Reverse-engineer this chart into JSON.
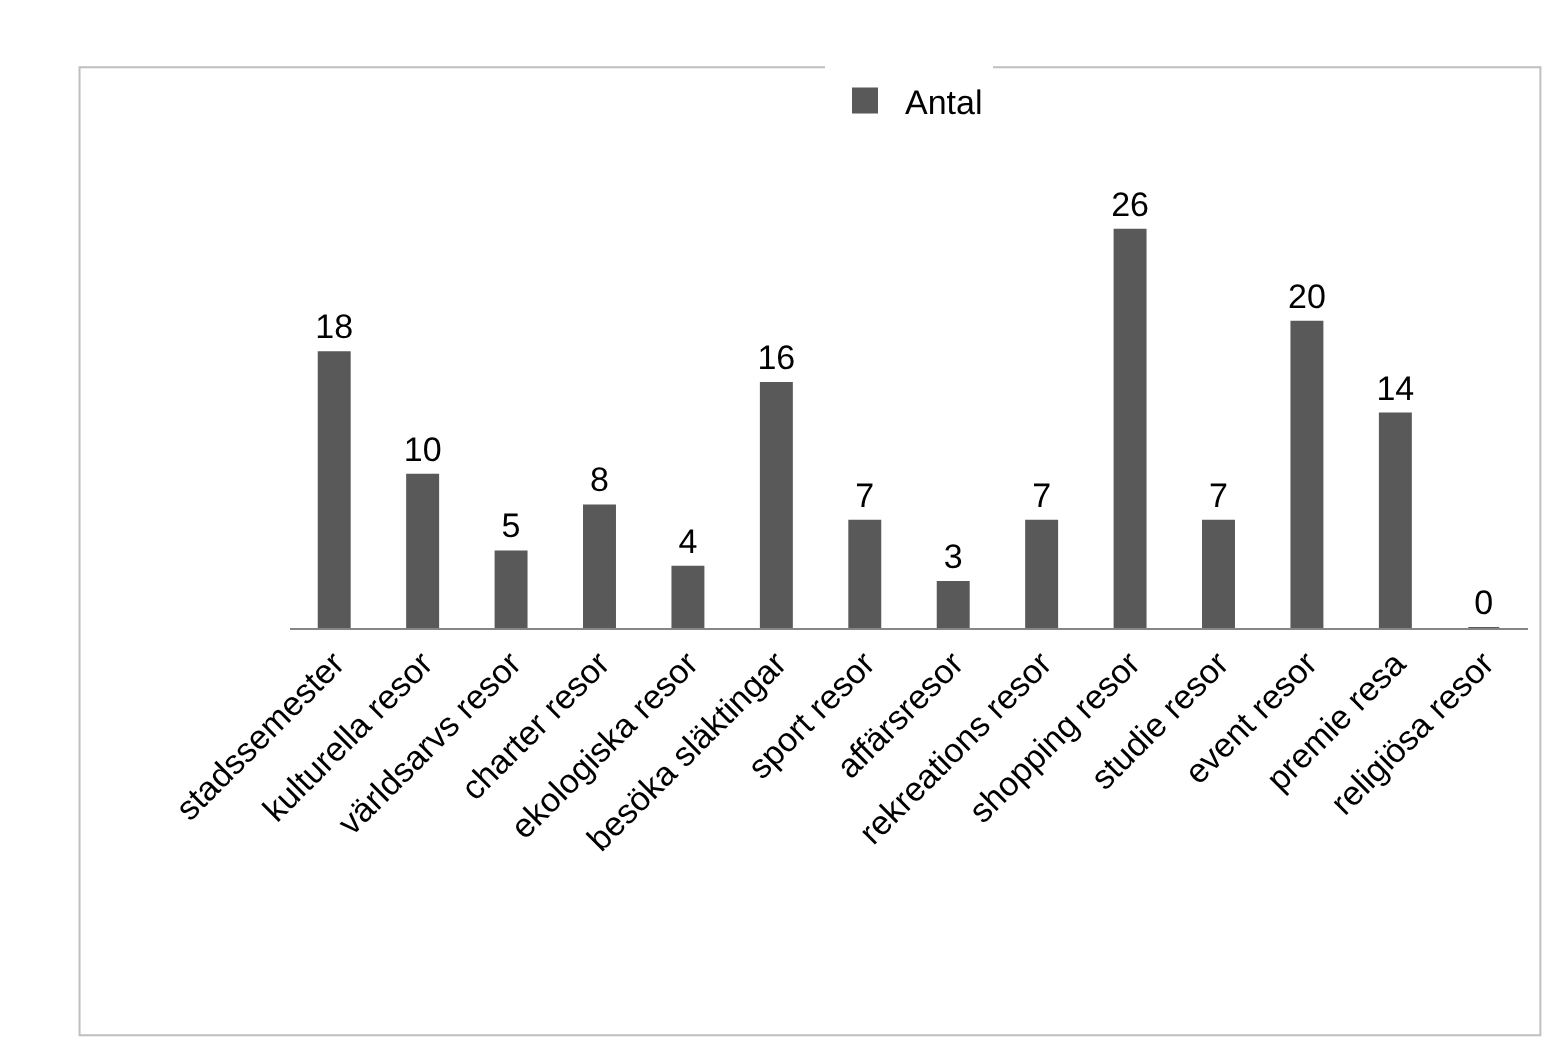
{
  "chart_data": {
    "type": "bar",
    "categories": [
      "stadssemester",
      "kulturella resor",
      "världsarvs resor",
      "charter resor",
      "ekologiska resor",
      "besöka släktingar",
      "sport resor",
      "affärsresor",
      "rekreations resor",
      "shopping resor",
      "studie resor",
      "event resor",
      "premie resa",
      "religiösa resor"
    ],
    "series": [
      {
        "name": "Antal",
        "color": "#595959",
        "values": [
          18,
          10,
          5,
          8,
          4,
          16,
          7,
          3,
          7,
          26,
          7,
          20,
          14,
          0
        ]
      }
    ],
    "data_labels": true,
    "legend": "top",
    "tick_labels": "x"
  }
}
